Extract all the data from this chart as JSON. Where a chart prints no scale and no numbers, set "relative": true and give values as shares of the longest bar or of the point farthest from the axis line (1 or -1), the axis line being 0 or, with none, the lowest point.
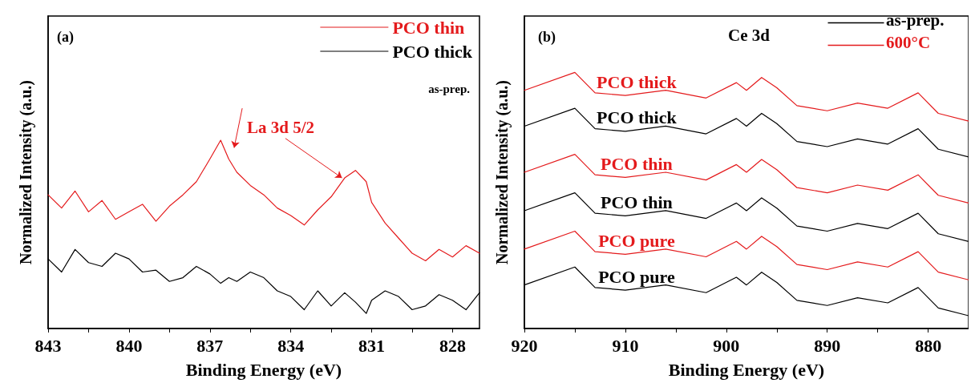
{
  "chart_data": [
    {
      "type": "line",
      "title": "(a)",
      "xlabel": "Binding Energy (eV)",
      "ylabel": "Normalized Intensity (a.u.)",
      "relative": true,
      "xlim": [
        843,
        827
      ],
      "xticks": [
        843,
        {
          "value": 841.5,
          "label": null
        },
        840,
        {
          "value": 838.5,
          "label": null
        },
        837,
        {
          "value": 835.5,
          "label": null
        },
        834,
        {
          "value": 832.5,
          "label": null
        },
        831,
        {
          "value": 829.5,
          "label": null
        },
        828
      ],
      "legend": "top right",
      "marker": "none",
      "line_style": "solid",
      "grid": false,
      "x": [
        843,
        842.5,
        842,
        841.5,
        841,
        840.5,
        840,
        839.5,
        839,
        838.5,
        838,
        837.5,
        837,
        836.6,
        836.3,
        836,
        835.5,
        835,
        834.5,
        834,
        833.5,
        833,
        832.5,
        832,
        831.6,
        831.2,
        831,
        830.5,
        830,
        829.5,
        829,
        828.5,
        828,
        827.5,
        827
      ],
      "series": [
        {
          "name": "PCO thin",
          "color": "#e41a1c",
          "values": [
            0.71,
            0.64,
            0.73,
            0.62,
            0.68,
            0.58,
            0.62,
            0.66,
            0.57,
            0.65,
            0.71,
            0.78,
            0.9,
            1.0,
            0.9,
            0.83,
            0.76,
            0.71,
            0.64,
            0.6,
            0.55,
            0.63,
            0.7,
            0.8,
            0.84,
            0.78,
            0.67,
            0.56,
            0.48,
            0.4,
            0.36,
            0.42,
            0.38,
            0.44,
            0.4
          ]
        },
        {
          "name": "PCO thick",
          "color": "#000000",
          "values": [
            0.37,
            0.3,
            0.42,
            0.35,
            0.33,
            0.4,
            0.37,
            0.3,
            0.31,
            0.25,
            0.27,
            0.33,
            0.29,
            0.24,
            0.27,
            0.25,
            0.3,
            0.27,
            0.2,
            0.17,
            0.1,
            0.2,
            0.12,
            0.19,
            0.14,
            0.08,
            0.15,
            0.2,
            0.17,
            0.1,
            0.12,
            0.18,
            0.15,
            0.1,
            0.19
          ]
        }
      ],
      "annotations": [
        "as-prep.",
        "La 3d 5/2"
      ]
    },
    {
      "type": "line",
      "title": "(b)",
      "xlabel": "Binding Energy (eV)",
      "ylabel": "Normalized Intensity (a.u.)",
      "relative": true,
      "xlim": [
        920,
        876
      ],
      "xticks": [
        920,
        {
          "value": 915,
          "label": null
        },
        910,
        {
          "value": 905,
          "label": null
        },
        900,
        {
          "value": 895,
          "label": null
        },
        890,
        {
          "value": 885,
          "label": null
        },
        880
      ],
      "marker": "none",
      "line_style": "solid",
      "grid": false,
      "x": [
        920,
        915,
        913,
        910,
        906,
        902,
        899,
        898,
        896.5,
        895,
        893,
        890,
        887,
        884,
        881,
        879,
        876
      ],
      "series": [
        {
          "name": "PCO thick",
          "color": "#000000",
          "values": [
            0.79,
            0.86,
            0.78,
            0.77,
            0.79,
            0.76,
            0.82,
            0.79,
            0.84,
            0.8,
            0.73,
            0.71,
            0.74,
            0.72,
            0.78,
            0.7,
            0.67
          ]
        },
        {
          "name": "PCO thick",
          "color": "#e41a1c",
          "values": [
            0.93,
            1.0,
            0.92,
            0.91,
            0.93,
            0.9,
            0.96,
            0.93,
            0.98,
            0.94,
            0.87,
            0.85,
            0.88,
            0.86,
            0.92,
            0.84,
            0.81
          ]
        },
        {
          "name": "PCO thin",
          "color": "#000000",
          "values": [
            0.46,
            0.53,
            0.45,
            0.44,
            0.46,
            0.43,
            0.49,
            0.46,
            0.51,
            0.47,
            0.4,
            0.38,
            0.41,
            0.39,
            0.45,
            0.37,
            0.34
          ]
        },
        {
          "name": "PCO thin",
          "color": "#e41a1c",
          "values": [
            0.61,
            0.68,
            0.6,
            0.59,
            0.61,
            0.58,
            0.64,
            0.61,
            0.66,
            0.62,
            0.55,
            0.53,
            0.56,
            0.54,
            0.6,
            0.52,
            0.49
          ]
        },
        {
          "name": "PCO pure",
          "color": "#000000",
          "values": [
            0.17,
            0.24,
            0.16,
            0.15,
            0.17,
            0.14,
            0.2,
            0.17,
            0.22,
            0.18,
            0.11,
            0.09,
            0.12,
            0.1,
            0.16,
            0.08,
            0.05
          ]
        },
        {
          "name": "PCO pure",
          "color": "#e41a1c",
          "values": [
            0.31,
            0.38,
            0.3,
            0.29,
            0.31,
            0.28,
            0.34,
            0.31,
            0.36,
            0.32,
            0.25,
            0.23,
            0.26,
            0.24,
            0.3,
            0.22,
            0.19
          ]
        }
      ],
      "annotations": [
        "Ce 3d",
        "as-prep.",
        "600°C"
      ]
    }
  ]
}
